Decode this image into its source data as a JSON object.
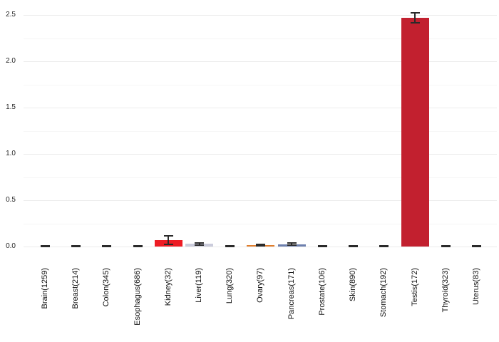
{
  "chart": {
    "background_color": "#ffffff",
    "grid_major_color": "#ececec",
    "grid_minor_color": "#f6f6f6",
    "error_bar_color": "#2a2a2a",
    "y_tick_labels": [
      "0.0",
      "0.5",
      "1.0",
      "1.5",
      "2.0",
      "2.5"
    ]
  },
  "chart_data": {
    "type": "bar",
    "title": "",
    "xlabel": "",
    "ylabel": "",
    "ylim": [
      0,
      2.6
    ],
    "yticks": [
      0.0,
      0.5,
      1.0,
      1.5,
      2.0,
      2.5
    ],
    "minor_yticks": [
      0.25,
      0.75,
      1.25,
      1.75,
      2.25
    ],
    "grid": true,
    "legend": false,
    "error_bars": true,
    "x_tick_rotation": 90,
    "categories": [
      "Brain(1259)",
      "Breast(214)",
      "Colon(345)",
      "Esophagus(686)",
      "Kidney(32)",
      "Liver(119)",
      "Lung(320)",
      "Ovary(97)",
      "Pancreas(171)",
      "Prostate(106)",
      "Skin(890)",
      "Stomach(192)",
      "Testis(172)",
      "Thyroid(323)",
      "Uterus(83)"
    ],
    "values": [
      0.005,
      0.005,
      0.004,
      0.005,
      0.07,
      0.03,
      0.005,
      0.012,
      0.025,
      0.005,
      0.005,
      0.005,
      2.47,
      0.005,
      0.005
    ],
    "errors": [
      0.004,
      0.004,
      0.003,
      0.004,
      0.045,
      0.012,
      0.004,
      0.008,
      0.012,
      0.004,
      0.004,
      0.004,
      0.055,
      0.004,
      0.004
    ],
    "colors": [
      "#333333",
      "#333333",
      "#333333",
      "#333333",
      "#ed1c24",
      "#cbccdc",
      "#333333",
      "#e07e2d",
      "#6d80ae",
      "#333333",
      "#333333",
      "#333333",
      "#c2202f",
      "#333333",
      "#333333"
    ]
  }
}
